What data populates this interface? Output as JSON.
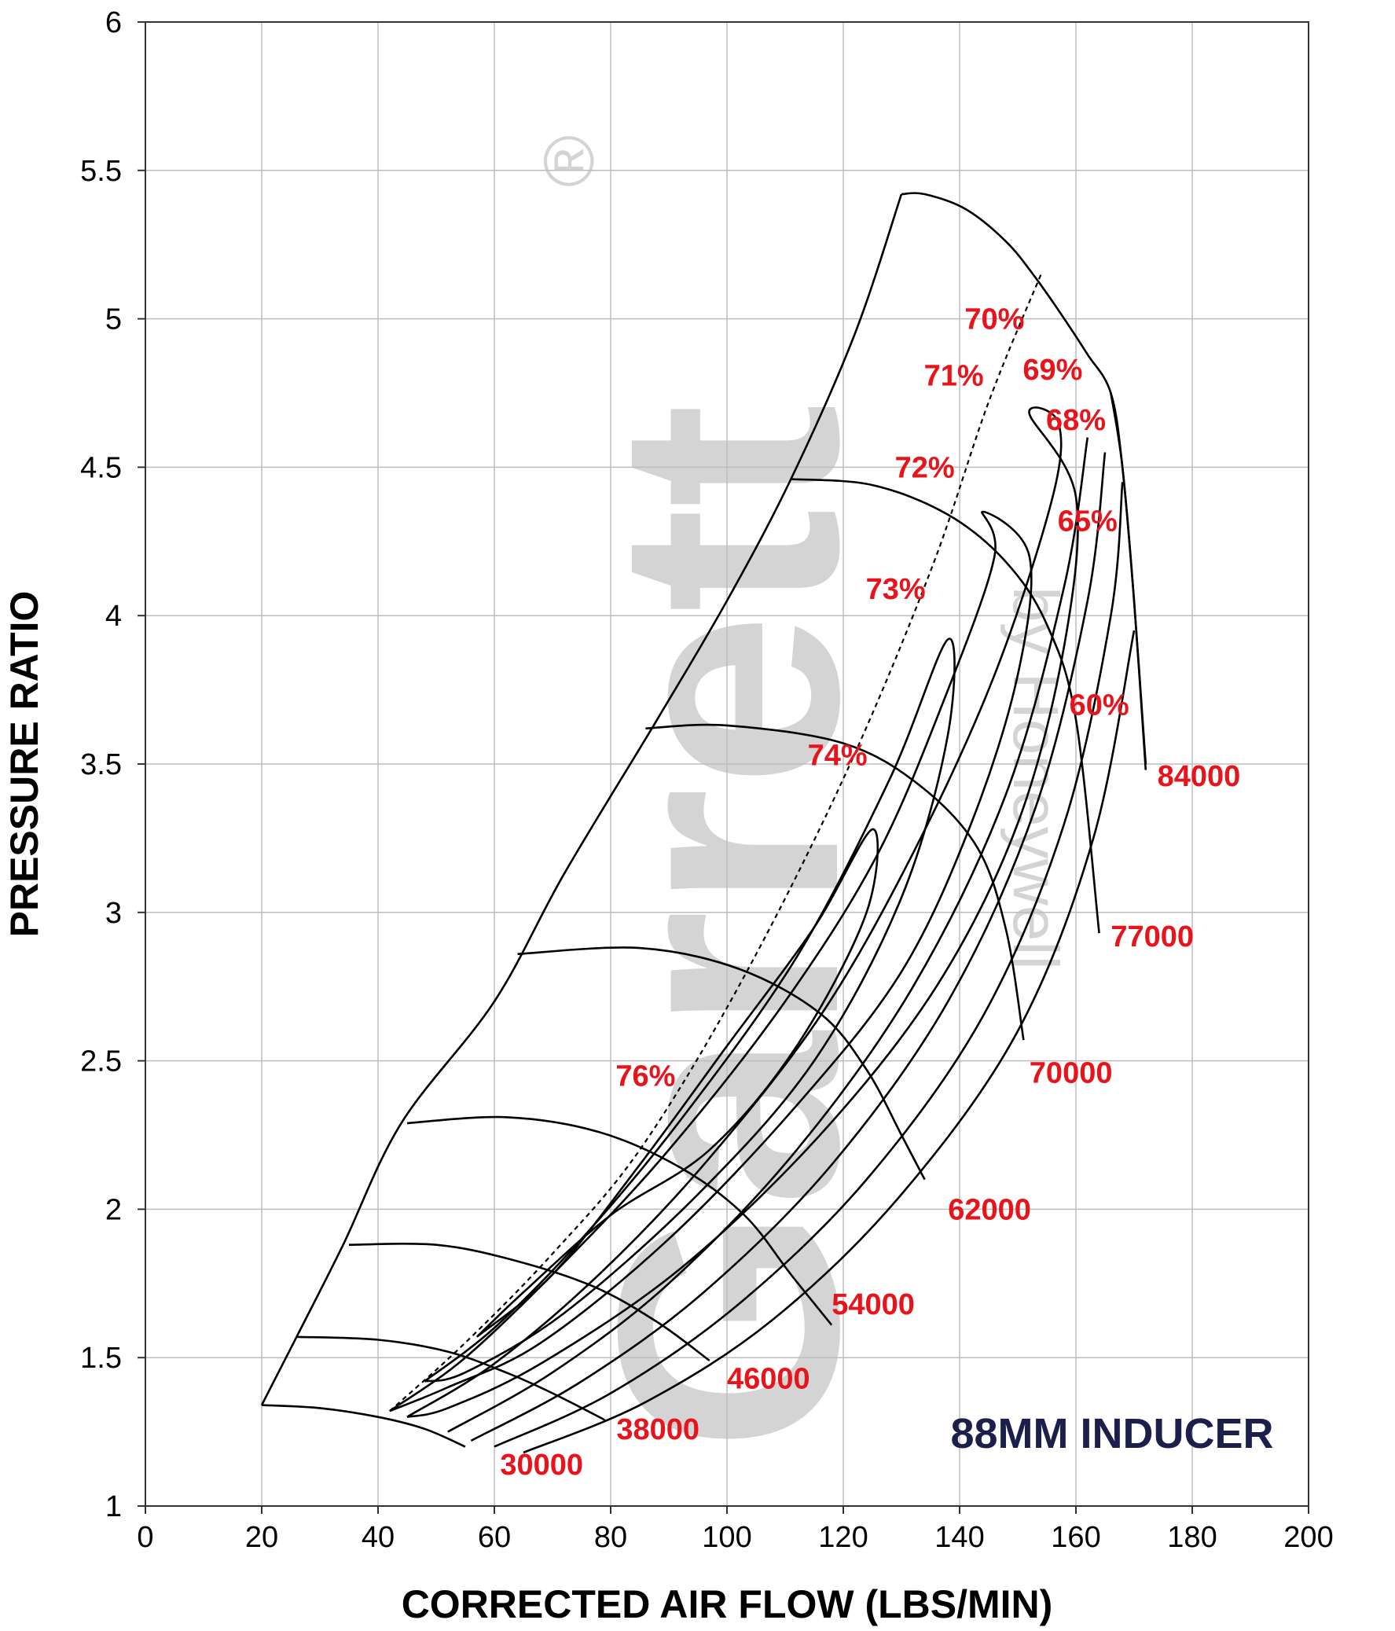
{
  "chart_data": {
    "type": "line",
    "xlabel": "CORRECTED AIR FLOW (LBS/MIN)",
    "ylabel": "PRESSURE RATIO",
    "xlim": [
      0,
      200
    ],
    "ylim": [
      1,
      6
    ],
    "x_ticks": [
      "0",
      "20",
      "40",
      "60",
      "80",
      "100",
      "120",
      "140",
      "160",
      "180",
      "200"
    ],
    "y_ticks": [
      "1",
      "1.5",
      "2",
      "2.5",
      "3",
      "3.5",
      "4",
      "4.5",
      "5",
      "5.5",
      "6"
    ],
    "grid": true,
    "annotation": "88MM INDUCER",
    "watermark": {
      "brand": "Garrett",
      "sub": "by Honeywell",
      "mark": "®"
    },
    "surge_line": [
      [
        20,
        1.34
      ],
      [
        26,
        1.57
      ],
      [
        34,
        1.88
      ],
      [
        44,
        2.29
      ],
      [
        60,
        2.7
      ],
      [
        72,
        3.13
      ],
      [
        88,
        3.65
      ],
      [
        100,
        4.05
      ],
      [
        111,
        4.46
      ],
      [
        122,
        4.95
      ],
      [
        130,
        5.42
      ]
    ],
    "choke_line": [
      [
        130,
        5.42
      ],
      [
        134,
        5.42
      ],
      [
        141,
        5.37
      ],
      [
        148,
        5.26
      ],
      [
        153,
        5.14
      ],
      [
        158,
        5.0
      ],
      [
        162,
        4.88
      ],
      [
        166,
        4.75
      ],
      [
        168,
        4.5
      ],
      [
        170,
        4.05
      ],
      [
        172,
        3.5
      ]
    ],
    "speed_lines": [
      {
        "name": "30000",
        "label": "30000",
        "points": [
          [
            20,
            1.34
          ],
          [
            30,
            1.33
          ],
          [
            40,
            1.3
          ],
          [
            48,
            1.26
          ],
          [
            55,
            1.2
          ]
        ]
      },
      {
        "name": "38000",
        "label": "38000",
        "points": [
          [
            26,
            1.57
          ],
          [
            40,
            1.56
          ],
          [
            52,
            1.52
          ],
          [
            62,
            1.45
          ],
          [
            70,
            1.38
          ],
          [
            79,
            1.29
          ]
        ]
      },
      {
        "name": "46000",
        "label": "46000",
        "points": [
          [
            35,
            1.88
          ],
          [
            50,
            1.88
          ],
          [
            63,
            1.83
          ],
          [
            77,
            1.74
          ],
          [
            88,
            1.62
          ],
          [
            97,
            1.49
          ]
        ]
      },
      {
        "name": "54000",
        "label": "54000",
        "points": [
          [
            45,
            2.29
          ],
          [
            62,
            2.31
          ],
          [
            78,
            2.26
          ],
          [
            92,
            2.14
          ],
          [
            103,
            1.98
          ],
          [
            111,
            1.78
          ],
          [
            118,
            1.61
          ]
        ]
      },
      {
        "name": "62000",
        "label": "62000",
        "points": [
          [
            64,
            2.86
          ],
          [
            85,
            2.88
          ],
          [
            102,
            2.81
          ],
          [
            116,
            2.66
          ],
          [
            124,
            2.47
          ],
          [
            130,
            2.25
          ],
          [
            134,
            2.1
          ]
        ]
      },
      {
        "name": "70000",
        "label": "70000",
        "points": [
          [
            86,
            3.62
          ],
          [
            100,
            3.63
          ],
          [
            120,
            3.57
          ],
          [
            133,
            3.43
          ],
          [
            143,
            3.22
          ],
          [
            148,
            2.94
          ],
          [
            151,
            2.57
          ]
        ]
      },
      {
        "name": "77000",
        "label": "77000",
        "points": [
          [
            111,
            4.46
          ],
          [
            125,
            4.44
          ],
          [
            138,
            4.34
          ],
          [
            148,
            4.18
          ],
          [
            155,
            3.97
          ],
          [
            160,
            3.65
          ],
          [
            164,
            2.93
          ]
        ]
      },
      {
        "name": "84000",
        "label": "84000",
        "points": [
          [
            166,
            4.75
          ],
          [
            168,
            4.5
          ],
          [
            170,
            4.05
          ],
          [
            172,
            3.48
          ]
        ]
      }
    ],
    "efficiency_islands": [
      {
        "name": "76%",
        "label": "76%"
      },
      {
        "name": "74%",
        "label": "74%"
      },
      {
        "name": "73%",
        "label": "73%"
      },
      {
        "name": "72%",
        "label": "72%"
      },
      {
        "name": "71%",
        "label": "71%"
      },
      {
        "name": "70%",
        "label": "70%"
      },
      {
        "name": "69%",
        "label": "69%"
      },
      {
        "name": "68%",
        "label": "68%"
      },
      {
        "name": "65%",
        "label": "65%"
      },
      {
        "name": "60%",
        "label": "60%"
      }
    ],
    "peak_efficiency_line": [
      [
        42,
        1.32
      ],
      [
        55,
        1.55
      ],
      [
        70,
        1.85
      ],
      [
        85,
        2.2
      ],
      [
        102,
        2.75
      ],
      [
        120,
        3.45
      ],
      [
        135,
        4.15
      ],
      [
        145,
        4.72
      ],
      [
        154,
        5.15
      ]
    ]
  }
}
